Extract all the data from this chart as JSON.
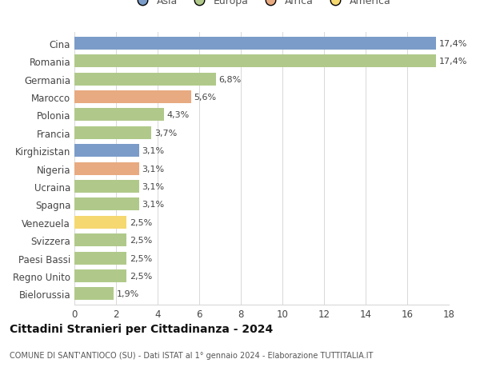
{
  "countries": [
    "Cina",
    "Romania",
    "Germania",
    "Marocco",
    "Polonia",
    "Francia",
    "Kirghizistan",
    "Nigeria",
    "Ucraina",
    "Spagna",
    "Venezuela",
    "Svizzera",
    "Paesi Bassi",
    "Regno Unito",
    "Bielorussia"
  ],
  "values": [
    17.4,
    17.4,
    6.8,
    5.6,
    4.3,
    3.7,
    3.1,
    3.1,
    3.1,
    3.1,
    2.5,
    2.5,
    2.5,
    2.5,
    1.9
  ],
  "labels": [
    "17,4%",
    "17,4%",
    "6,8%",
    "5,6%",
    "4,3%",
    "3,7%",
    "3,1%",
    "3,1%",
    "3,1%",
    "3,1%",
    "2,5%",
    "2,5%",
    "2,5%",
    "2,5%",
    "1,9%"
  ],
  "colors": [
    "#7b9cc8",
    "#b0c98a",
    "#b0c98a",
    "#e8aa80",
    "#b0c98a",
    "#b0c98a",
    "#7b9cc8",
    "#e8aa80",
    "#b0c98a",
    "#b0c98a",
    "#f5d870",
    "#b0c98a",
    "#b0c98a",
    "#b0c98a",
    "#b0c98a"
  ],
  "continents": [
    "Asia",
    "Europa",
    "Africa",
    "America"
  ],
  "continent_colors": [
    "#7b9cc8",
    "#b0c98a",
    "#e8aa80",
    "#f5d870"
  ],
  "title": "Cittadini Stranieri per Cittadinanza - 2024",
  "subtitle": "COMUNE DI SANT'ANTIOCO (SU) - Dati ISTAT al 1° gennaio 2024 - Elaborazione TUTTITALIA.IT",
  "xlim": [
    0,
    18
  ],
  "xticks": [
    0,
    2,
    4,
    6,
    8,
    10,
    12,
    14,
    16,
    18
  ],
  "background_color": "#ffffff",
  "grid_color": "#d8d8d8"
}
